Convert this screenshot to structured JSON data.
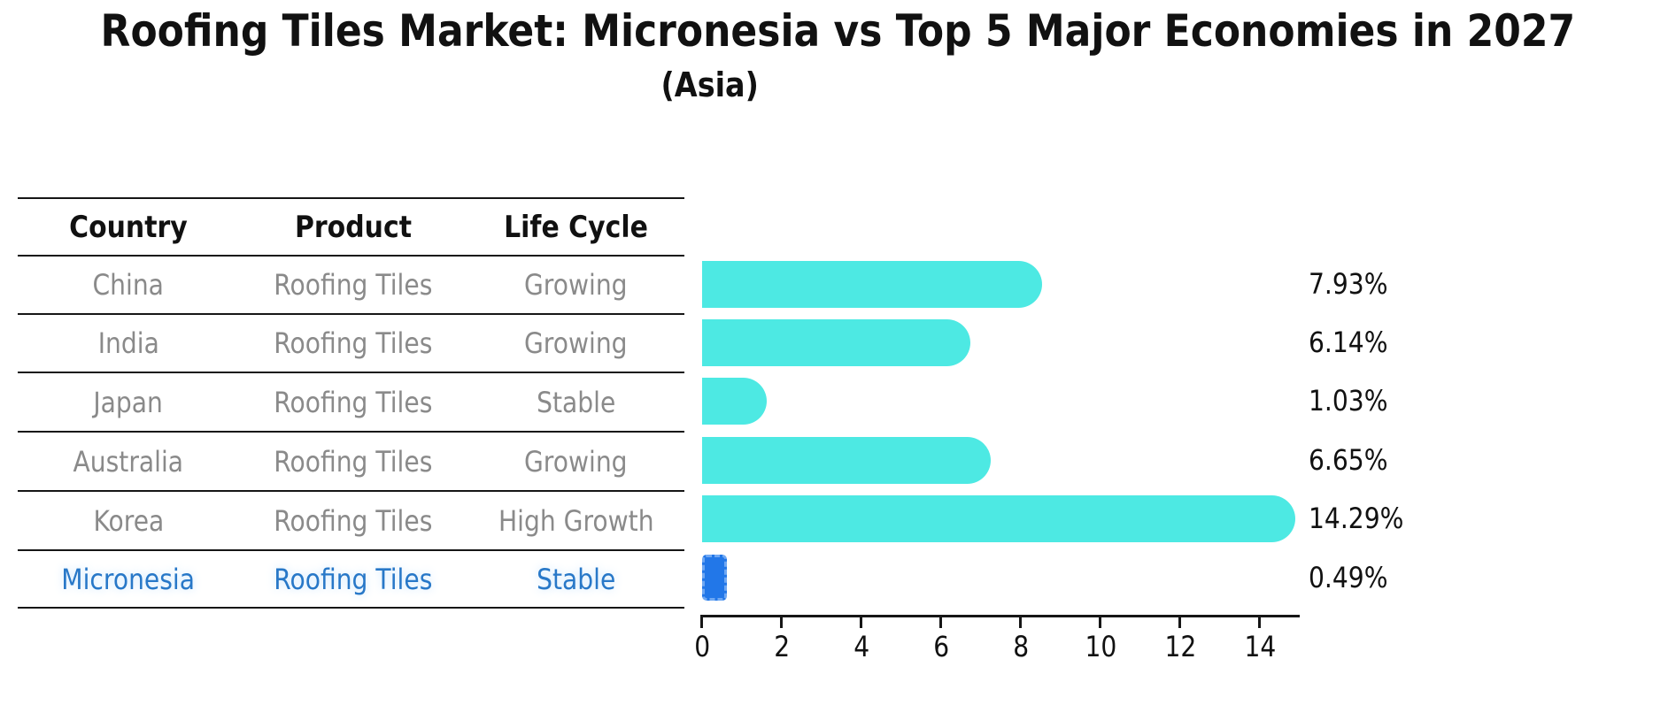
{
  "title": "Roofing Tiles Market: Micronesia vs Top 5 Major Economies in 2027",
  "subtitle": "(Asia)",
  "table": {
    "headers": [
      "Country",
      "Product",
      "Life Cycle"
    ]
  },
  "rows": [
    {
      "country": "China",
      "product": "Roofing Tiles",
      "life_cycle": "Growing",
      "value_label": "7.93%",
      "highlighted": false
    },
    {
      "country": "India",
      "product": "Roofing Tiles",
      "life_cycle": "Growing",
      "value_label": "6.14%",
      "highlighted": false
    },
    {
      "country": "Japan",
      "product": "Roofing Tiles",
      "life_cycle": "Stable",
      "value_label": "1.03%",
      "highlighted": false
    },
    {
      "country": "Australia",
      "product": "Roofing Tiles",
      "life_cycle": "Growing",
      "value_label": "6.65%",
      "highlighted": false
    },
    {
      "country": "Korea",
      "product": "Roofing Tiles",
      "life_cycle": "High Growth",
      "value_label": "14.29%",
      "highlighted": false
    },
    {
      "country": "Micronesia",
      "product": "Roofing Tiles",
      "life_cycle": "Stable",
      "value_label": "0.49%",
      "highlighted": true
    }
  ],
  "chart_data": {
    "type": "bar",
    "orientation": "horizontal",
    "title": "Roofing Tiles Market: Micronesia vs Top 5 Major Economies in 2027",
    "subtitle": "(Asia)",
    "categories": [
      "China",
      "India",
      "Japan",
      "Australia",
      "Korea",
      "Micronesia"
    ],
    "values": [
      7.93,
      6.14,
      1.03,
      6.65,
      14.29,
      0.49
    ],
    "value_labels": [
      "7.93%",
      "6.14%",
      "1.03%",
      "6.65%",
      "14.29%",
      "0.49%"
    ],
    "units": "%",
    "xlim": [
      0,
      15
    ],
    "x_ticks": [
      0,
      2,
      4,
      6,
      8,
      10,
      12,
      14
    ],
    "grid": false,
    "legend": false,
    "bar_color": "#4de9e3",
    "highlight_color": "#2277e8",
    "highlight_dash_color": "#6fa8f3",
    "highlight_index": 5,
    "highlight_text_color": "#2878c8",
    "text_gray": "#8a8a8a",
    "axis_color": "#161616"
  }
}
